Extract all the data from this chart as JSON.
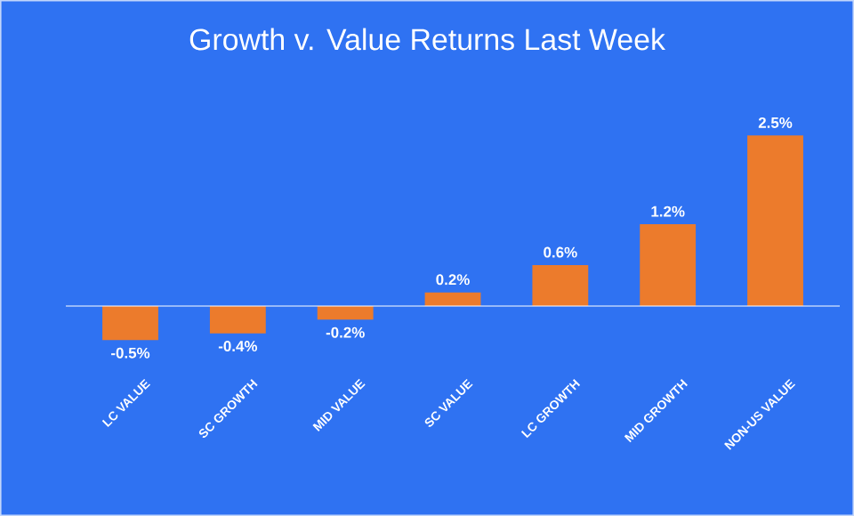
{
  "chart_data": {
    "type": "bar",
    "title": "Growth v. Value Returns Last Week",
    "categories": [
      "LC VALUE",
      "SC GROWTH",
      "MID VALUE",
      "SC VALUE",
      "LC GROWTH",
      "MID GROWTH",
      "NON-US VALUE"
    ],
    "values": [
      -0.5,
      -0.4,
      -0.2,
      0.2,
      0.6,
      1.2,
      2.5
    ],
    "value_labels": [
      "-0.5%",
      "-0.4%",
      "-0.2%",
      "0.2%",
      "0.6%",
      "1.2%",
      "2.5%"
    ],
    "color": "#ec7b2c"
  }
}
